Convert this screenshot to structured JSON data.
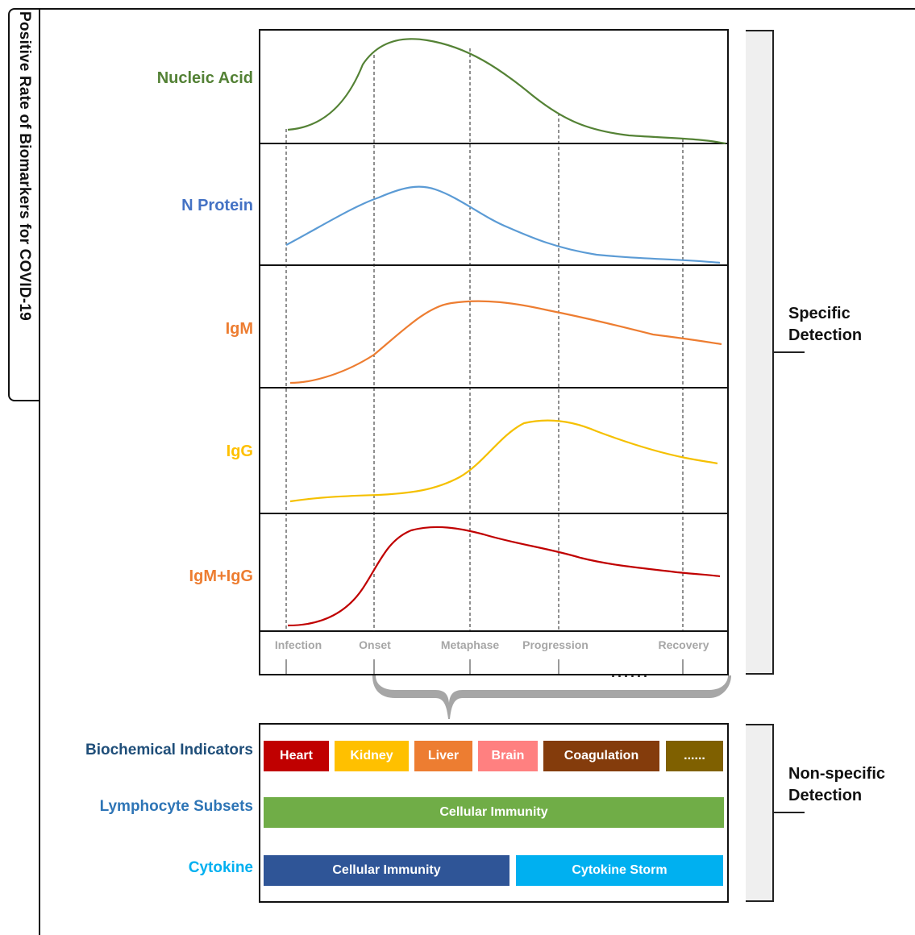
{
  "side_title": "Positive Rate of Biomarkers for COVID-19",
  "biomarkers": [
    {
      "label": "Nucleic Acid",
      "color": "#538135"
    },
    {
      "label": "N Protein",
      "color": "#4472c4"
    },
    {
      "label": "IgM",
      "color": "#ed7d31"
    },
    {
      "label": "IgG",
      "color": "#ffc000"
    },
    {
      "label": "IgM+IgG",
      "color": "#ed7d31"
    }
  ],
  "curve_colors": [
    "#548235",
    "#5b9bd5",
    "#ed7d31",
    "#f5c000",
    "#c00000"
  ],
  "stages": [
    "Infection",
    "Onset",
    "Metaphase",
    "Progression",
    "Recovery"
  ],
  "axis_ellipsis": "......",
  "specific_detection": [
    "Specific",
    "Detection"
  ],
  "nonspecific_detection": [
    "Non-specific",
    "Detection"
  ],
  "nonspecific_rows": [
    {
      "label": "Biochemical Indicators",
      "color": "#1f4e79"
    },
    {
      "label": "Lymphocyte Subsets",
      "color": "#2e75b6"
    },
    {
      "label": "Cytokine",
      "color": "#00b0f0"
    }
  ],
  "biochemical_boxes": [
    {
      "label": "Heart",
      "color": "#c00000"
    },
    {
      "label": "Kidney",
      "color": "#ffc000"
    },
    {
      "label": "Liver",
      "color": "#ed7d31"
    },
    {
      "label": "Brain",
      "color": "#ff8080"
    },
    {
      "label": "Coagulation",
      "color": "#843c0c"
    },
    {
      "label": "......",
      "color": "#7f6000"
    }
  ],
  "lymphocyte_box": {
    "label": "Cellular Immunity",
    "color": "#70ad47"
  },
  "cytokine_boxes": [
    {
      "label": "Cellular Immunity",
      "color": "#2f5597"
    },
    {
      "label": "Cytokine Storm",
      "color": "#00b0f0"
    }
  ]
}
